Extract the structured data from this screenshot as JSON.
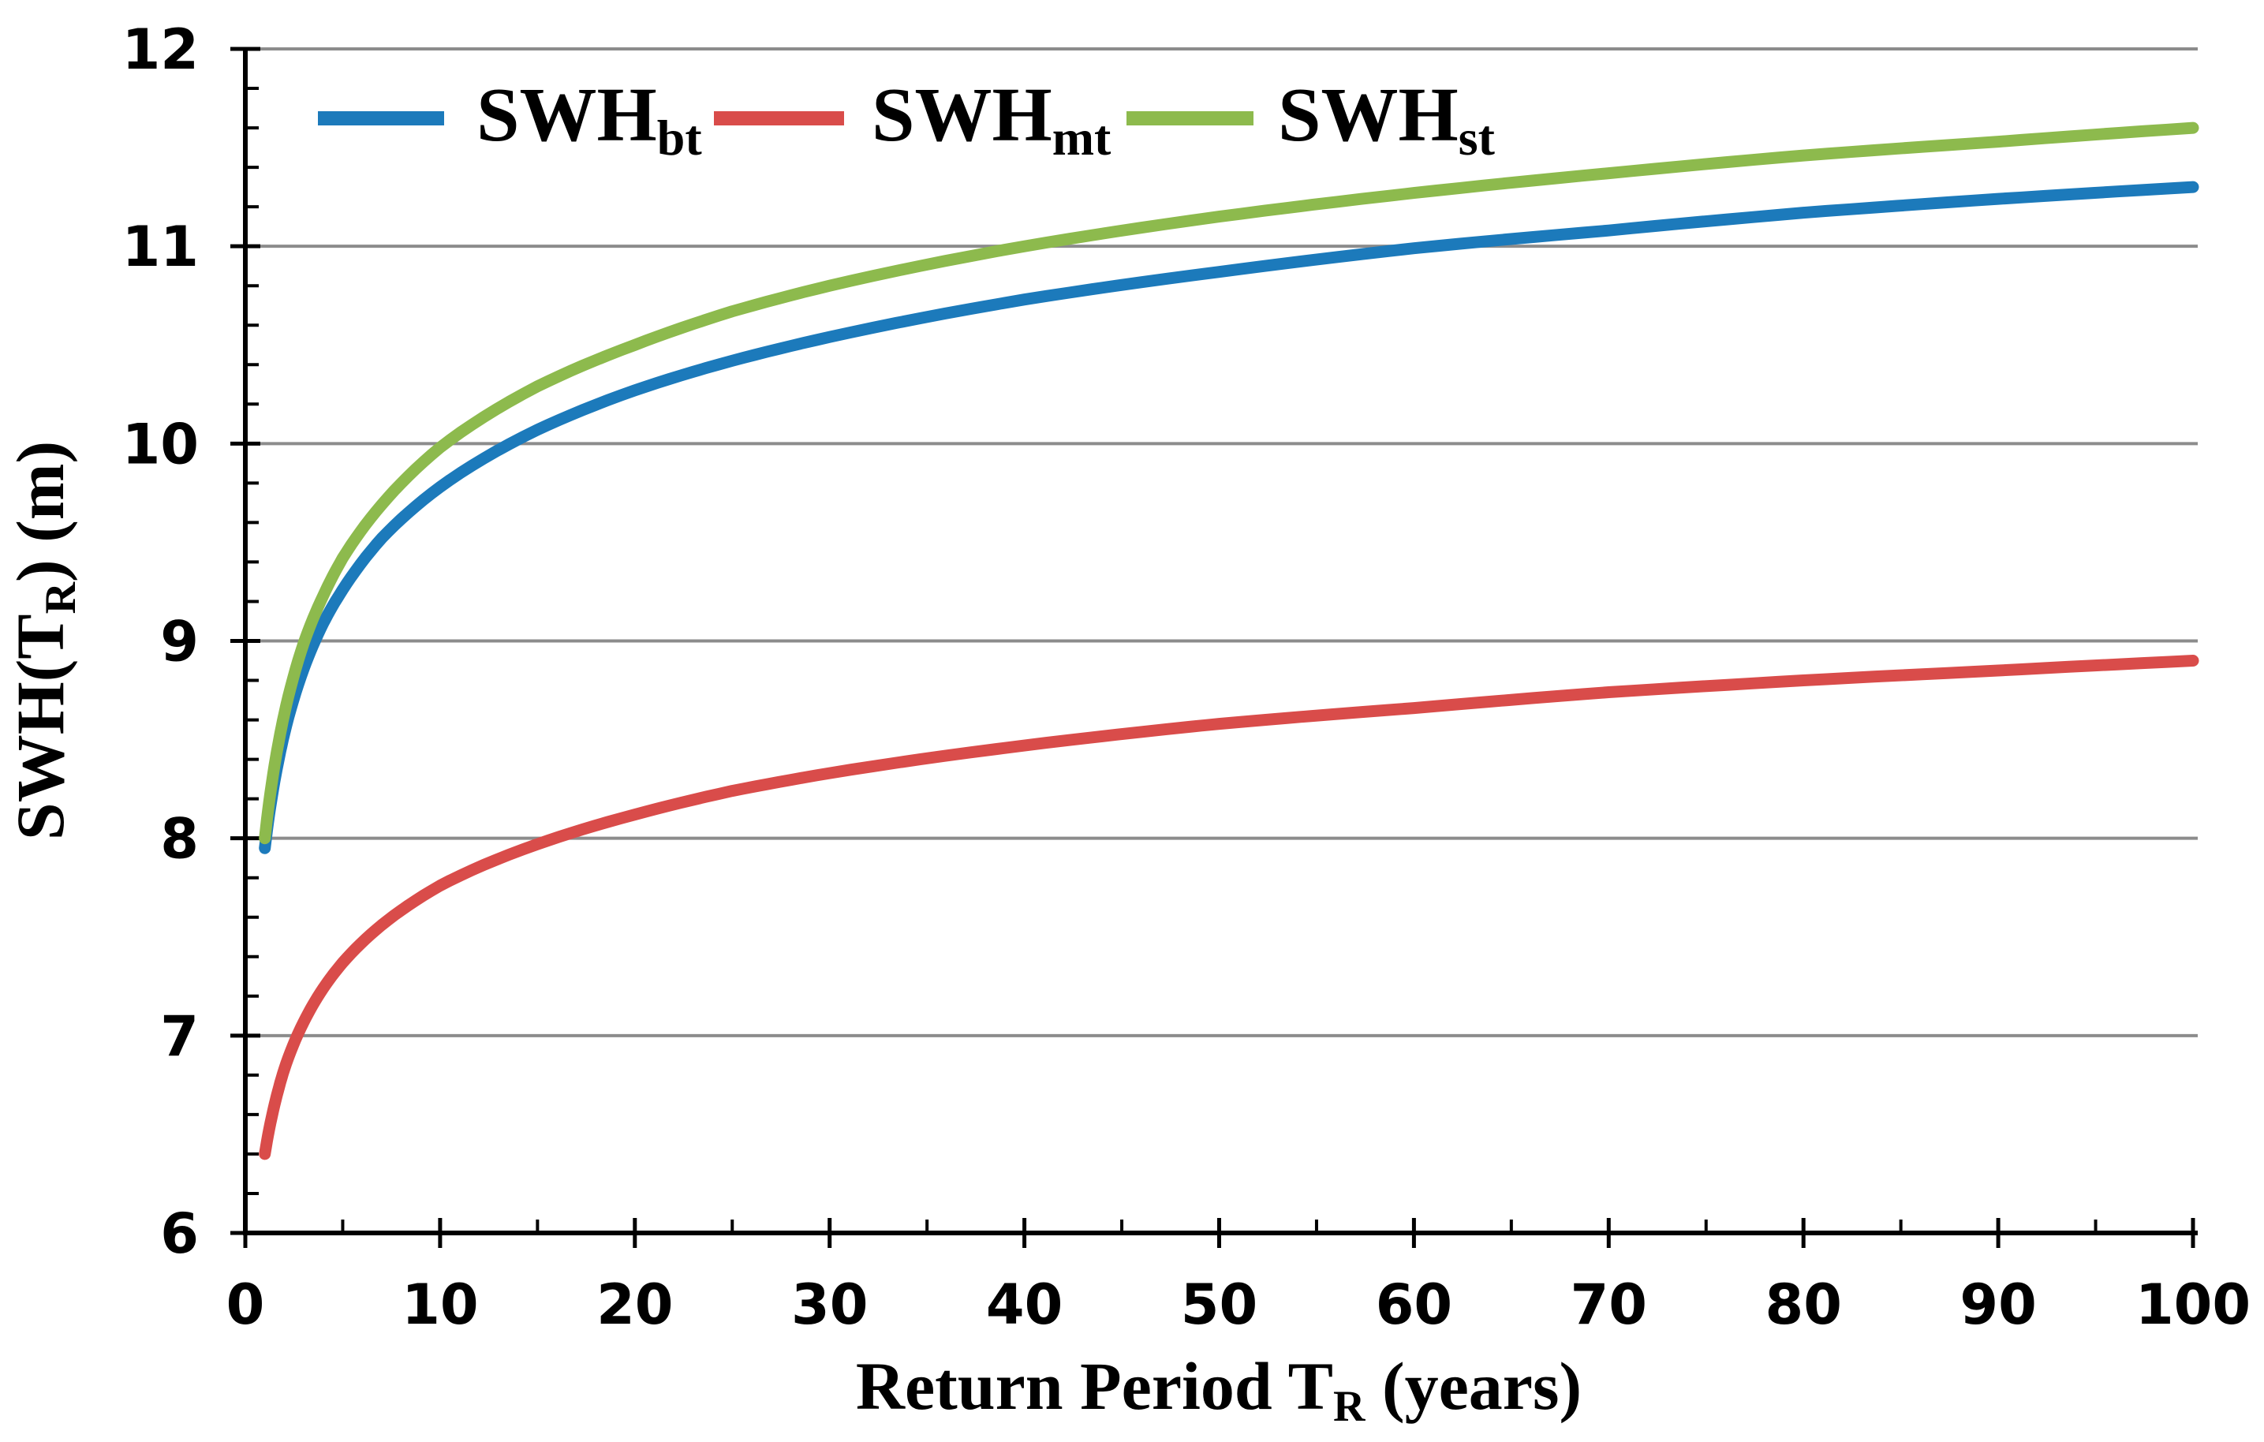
{
  "page": {
    "background": "#FFFFFF"
  },
  "chart_data": {
    "type": "line",
    "title": "",
    "x_axis": {
      "label_main": "Return Period T",
      "label_sub": "R",
      "label_suffix": " (years)",
      "min": 0,
      "max": 100,
      "major_ticks": [
        0,
        10,
        20,
        30,
        40,
        50,
        60,
        70,
        80,
        90,
        100
      ],
      "minor_tick_step": 5
    },
    "y_axis": {
      "label_main": "SWH(T",
      "label_sub": "R",
      "label_suffix": ") (m)",
      "min": 6,
      "max": 12,
      "major_ticks": [
        6,
        7,
        8,
        9,
        10,
        11,
        12
      ],
      "minor_tick_step": 0.2
    },
    "grid": {
      "horizontal": true,
      "vertical": false,
      "color": "#8C8C8C"
    },
    "axis_color": "#000000",
    "legend": {
      "position": "top-inside"
    },
    "series": [
      {
        "id": "bt",
        "name_main": "SWH",
        "name_sub": "bt",
        "color": "#1C7ABB",
        "points": [
          [
            1,
            7.95
          ],
          [
            1.5,
            8.29
          ],
          [
            2,
            8.53
          ],
          [
            3,
            8.86
          ],
          [
            4,
            9.09
          ],
          [
            5,
            9.26
          ],
          [
            7,
            9.52
          ],
          [
            10,
            9.78
          ],
          [
            15,
            10.07
          ],
          [
            20,
            10.27
          ],
          [
            25,
            10.42
          ],
          [
            30,
            10.54
          ],
          [
            40,
            10.73
          ],
          [
            50,
            10.87
          ],
          [
            60,
            10.99
          ],
          [
            70,
            11.08
          ],
          [
            80,
            11.17
          ],
          [
            90,
            11.24
          ],
          [
            100,
            11.3
          ]
        ]
      },
      {
        "id": "mt",
        "name_main": "SWH",
        "name_sub": "mt",
        "color": "#D94C4A",
        "points": [
          [
            1,
            6.4
          ],
          [
            1.5,
            6.65
          ],
          [
            2,
            6.83
          ],
          [
            3,
            7.07
          ],
          [
            4,
            7.24
          ],
          [
            5,
            7.37
          ],
          [
            7,
            7.56
          ],
          [
            10,
            7.76
          ],
          [
            15,
            7.97
          ],
          [
            20,
            8.12
          ],
          [
            25,
            8.24
          ],
          [
            30,
            8.33
          ],
          [
            40,
            8.47
          ],
          [
            50,
            8.58
          ],
          [
            60,
            8.66
          ],
          [
            70,
            8.74
          ],
          [
            80,
            8.8
          ],
          [
            90,
            8.85
          ],
          [
            100,
            8.9
          ]
        ]
      },
      {
        "id": "st",
        "name_main": "SWH",
        "name_sub": "st",
        "color": "#8DBA4D",
        "points": [
          [
            1,
            8.0
          ],
          [
            1.5,
            8.37
          ],
          [
            2,
            8.63
          ],
          [
            3,
            8.99
          ],
          [
            4,
            9.23
          ],
          [
            5,
            9.42
          ],
          [
            7,
            9.69
          ],
          [
            10,
            9.98
          ],
          [
            15,
            10.29
          ],
          [
            20,
            10.5
          ],
          [
            25,
            10.67
          ],
          [
            30,
            10.8
          ],
          [
            40,
            11.0
          ],
          [
            50,
            11.15
          ],
          [
            60,
            11.27
          ],
          [
            70,
            11.37
          ],
          [
            80,
            11.46
          ],
          [
            90,
            11.53
          ],
          [
            100,
            11.6
          ]
        ]
      }
    ]
  }
}
